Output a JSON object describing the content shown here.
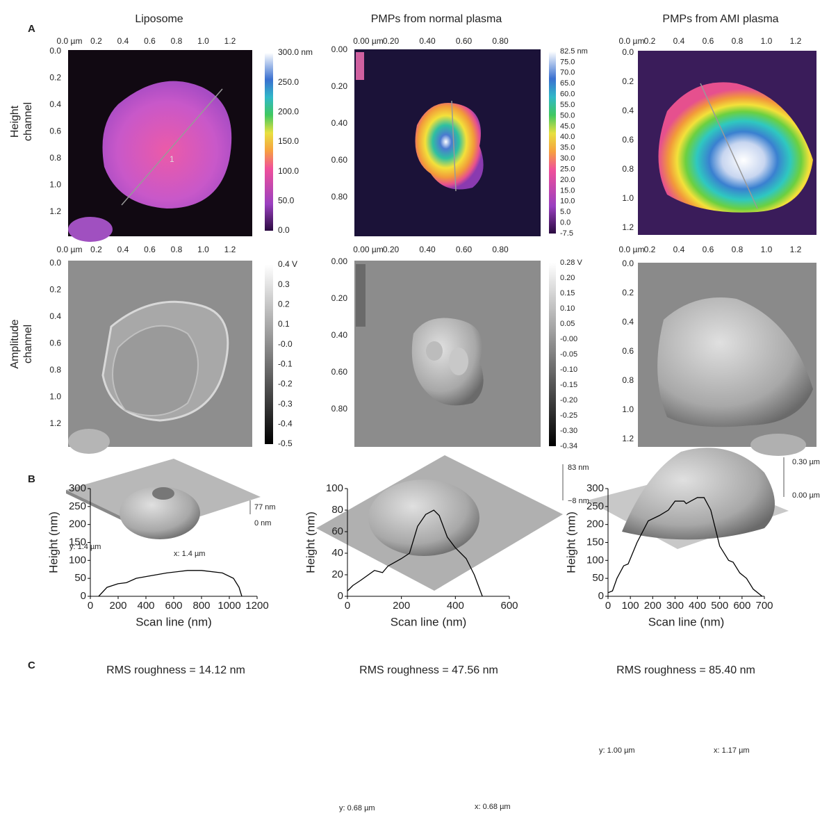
{
  "panel_labels": [
    "A",
    "B",
    "C"
  ],
  "panel_a": {
    "row_labels": [
      [
        "Height",
        "channel"
      ],
      [
        "Amplitude",
        "channel"
      ]
    ],
    "columns": [
      {
        "title": "Liposome",
        "height": {
          "x_ticks": [
            "0.0 µm",
            "0.2",
            "0.4",
            "0.6",
            "0.8",
            "1.0",
            "1.2"
          ],
          "y_ticks": [
            "0.0",
            "0.2",
            "0.4",
            "0.6",
            "0.8",
            "1.0",
            "1.2"
          ],
          "colorbar": [
            "300.0 nm",
            "250.0",
            "200.0",
            "150.0",
            "100.0",
            "50.0",
            "0.0"
          ],
          "annotation": "1"
        },
        "amplitude": {
          "x_ticks": [
            "0.0 µm",
            "0.2",
            "0.4",
            "0.6",
            "0.8",
            "1.0",
            "1.2"
          ],
          "y_ticks": [
            "0.0",
            "0.2",
            "0.4",
            "0.6",
            "0.8",
            "1.0",
            "1.2"
          ],
          "colorbar": [
            "0.4 V",
            "0.3",
            "0.2",
            "0.1",
            "-0.0",
            "-0.1",
            "-0.2",
            "-0.3",
            "-0.4",
            "-0.5"
          ]
        }
      },
      {
        "title": "PMPs from normal plasma",
        "height": {
          "x_ticks": [
            "0.00 µm",
            "0.20",
            "0.40",
            "0.60",
            "0.80"
          ],
          "y_ticks": [
            "0.00",
            "0.20",
            "0.40",
            "0.60",
            "0.80"
          ],
          "colorbar": [
            "82.5 nm",
            "75.0",
            "70.0",
            "65.0",
            "60.0",
            "55.0",
            "50.0",
            "45.0",
            "40.0",
            "35.0",
            "30.0",
            "25.0",
            "20.0",
            "15.0",
            "10.0",
            "5.0",
            "0.0",
            "-7.5"
          ]
        },
        "amplitude": {
          "x_ticks": [
            "0.00 µm",
            "0.20",
            "0.40",
            "0.60",
            "0.80"
          ],
          "y_ticks": [
            "0.00",
            "0.20",
            "0.40",
            "0.60",
            "0.80"
          ],
          "colorbar": [
            "0.28 V",
            "0.20",
            "0.15",
            "0.10",
            "0.05",
            "-0.00",
            "-0.05",
            "-0.10",
            "-0.15",
            "-0.20",
            "-0.25",
            "-0.30",
            "-0.34"
          ]
        }
      },
      {
        "title": "PMPs from AMI plasma",
        "height": {
          "x_ticks": [
            "0.0 µm",
            "0.2",
            "0.4",
            "0.6",
            "0.8",
            "1.0",
            "1.2"
          ],
          "y_ticks": [
            "0.0",
            "0.2",
            "0.4",
            "0.6",
            "0.8",
            "1.0",
            "1.2"
          ]
        },
        "amplitude": {
          "x_ticks": [
            "0.0 µm",
            "0.2",
            "0.4",
            "0.6",
            "0.8",
            "1.0",
            "1.2"
          ],
          "y_ticks": [
            "0.0",
            "0.2",
            "0.4",
            "0.6",
            "0.8",
            "1.0",
            "1.2"
          ]
        }
      }
    ]
  },
  "chart_data": [
    {
      "type": "line",
      "xlabel": "Scan line (nm)",
      "ylabel": "Height (nm)",
      "color": "#000000",
      "x": [
        60,
        120,
        200,
        260,
        330,
        400,
        550,
        700,
        800,
        950,
        1030,
        1070,
        1090
      ],
      "y": [
        0,
        25,
        35,
        38,
        50,
        55,
        65,
        72,
        72,
        65,
        50,
        25,
        0
      ],
      "xlim": [
        0,
        1200
      ],
      "xticks": [
        0,
        200,
        400,
        600,
        800,
        1000,
        1200
      ],
      "ylim": [
        0,
        300
      ],
      "yticks": [
        0,
        50,
        100,
        150,
        200,
        250,
        300
      ]
    },
    {
      "type": "line",
      "xlabel": "Scan line (nm)",
      "ylabel": "Height (nm)",
      "color": "#000000",
      "x": [
        0,
        20,
        50,
        100,
        130,
        150,
        200,
        230,
        260,
        290,
        320,
        340,
        370,
        400,
        440,
        470,
        500
      ],
      "y": [
        5,
        10,
        15,
        24,
        22,
        28,
        35,
        40,
        65,
        76,
        80,
        75,
        55,
        45,
        35,
        20,
        0
      ],
      "xlim": [
        0,
        600
      ],
      "xticks": [
        0,
        200,
        400,
        600
      ],
      "ylim": [
        0,
        100
      ],
      "yticks": [
        0,
        20,
        40,
        60,
        80,
        100
      ]
    },
    {
      "type": "line",
      "xlabel": "Scan line (nm)",
      "ylabel": "Height (nm)",
      "color": "#000000",
      "x": [
        0,
        20,
        40,
        70,
        90,
        130,
        180,
        230,
        270,
        300,
        340,
        350,
        370,
        400,
        430,
        460,
        500,
        540,
        560,
        590,
        620,
        650,
        690
      ],
      "y": [
        10,
        15,
        50,
        85,
        90,
        150,
        210,
        225,
        240,
        265,
        265,
        258,
        265,
        275,
        275,
        240,
        140,
        100,
        95,
        65,
        50,
        20,
        0
      ],
      "xlim": [
        0,
        700
      ],
      "xticks": [
        0,
        100,
        200,
        300,
        400,
        500,
        600,
        700
      ],
      "ylim": [
        0,
        300
      ],
      "yticks": [
        0,
        50,
        100,
        150,
        200,
        250,
        300
      ]
    }
  ],
  "panel_c": [
    {
      "title": "RMS roughness = 14.12 nm",
      "z_top": "77 nm",
      "z_bottom": "0 nm",
      "y_size": "y: 1.4 µm",
      "x_size": "x: 1.4 µm"
    },
    {
      "title": "RMS roughness = 47.56 nm",
      "z_top": "83 nm",
      "z_bottom": "−8 nm",
      "y_size": "y: 0.68 µm",
      "x_size": "x: 0.68 µm"
    },
    {
      "title": "RMS roughness = 85.40 nm",
      "z_top": "0.30 µm",
      "z_bottom": "0.00 µm",
      "y_size": "y: 1.00 µm",
      "x_size": "x: 1.17 µm"
    }
  ]
}
